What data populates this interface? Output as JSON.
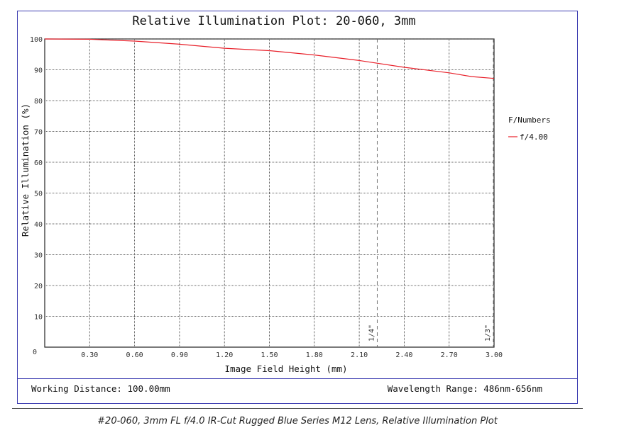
{
  "chart_data": {
    "type": "line",
    "title": "Relative Illumination Plot: 20-060, 3mm",
    "xlabel": "Image Field Height (mm)",
    "ylabel": "Relative Illumination (%)",
    "xlim": [
      0,
      3.0
    ],
    "ylim": [
      0,
      100
    ],
    "x_ticks": [
      0.3,
      0.6,
      0.9,
      1.2,
      1.5,
      1.8,
      2.1,
      2.4,
      2.7,
      3.0
    ],
    "x_tick_labels": [
      "0.30",
      "0.60",
      "0.90",
      "1.20",
      "1.50",
      "1.80",
      "2.10",
      "2.40",
      "2.70",
      "3.00"
    ],
    "y_ticks": [
      0,
      10,
      20,
      30,
      40,
      50,
      60,
      70,
      80,
      90,
      100
    ],
    "y_tick_labels": [
      "0",
      "10",
      "20",
      "30",
      "40",
      "50",
      "60",
      "70",
      "80",
      "90",
      "100"
    ],
    "grid": true,
    "legend": {
      "title": "F/Numbers",
      "position": "right"
    },
    "series": [
      {
        "name": "f/4.00",
        "color": "#e8202a",
        "x": [
          0,
          0.3,
          0.6,
          0.9,
          1.2,
          1.5,
          1.8,
          2.1,
          2.4,
          2.6,
          2.7,
          2.85,
          3.0
        ],
        "y": [
          100,
          99.9,
          99.3,
          98.3,
          97.0,
          96.2,
          94.8,
          93.0,
          90.8,
          89.6,
          89.0,
          87.8,
          87.2
        ]
      }
    ],
    "annotations": [
      {
        "label": "1/4\"",
        "x": 2.22
      },
      {
        "label": "1/3\"",
        "x": 3.0
      }
    ],
    "footer_left": "Working Distance: 100.00mm",
    "footer_right": "Wavelength Range: 486nm-656nm"
  },
  "caption": "#20-060, 3mm FL f/4.0 IR-Cut Rugged Blue Series M12 Lens, Relative Illumination Plot"
}
